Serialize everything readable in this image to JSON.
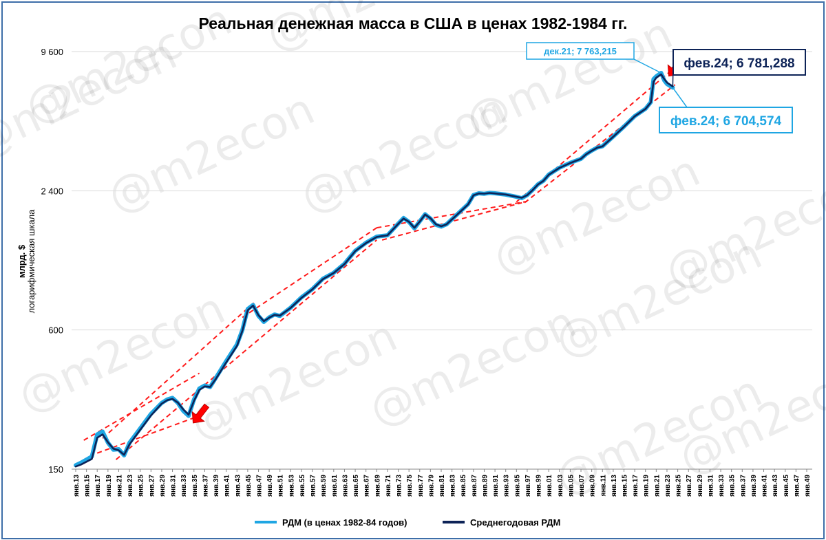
{
  "chart_data": {
    "type": "line",
    "title": "Реальная денежная масса в США в ценах 1982-1984 гг.",
    "ylabel": "млрд. $",
    "ylabel_sub": "логарифмическая шкала",
    "yscale": "log",
    "ylim": [
      150,
      9600
    ],
    "yticks": [
      "9 600",
      "2 400",
      "600",
      "150"
    ],
    "ytick_values": [
      9600,
      2400,
      600,
      150
    ],
    "grid": "horizontal",
    "legend_position": "bottom",
    "x_categories": [
      "янв.13",
      "янв.15",
      "янв.17",
      "янв.19",
      "янв.21",
      "янв.23",
      "янв.25",
      "янв.27",
      "янв.29",
      "янв.31",
      "янв.33",
      "янв.35",
      "янв.37",
      "янв.39",
      "янв.41",
      "янв.43",
      "янв.45",
      "янв.47",
      "янв.49",
      "янв.51",
      "янв.53",
      "янв.55",
      "янв.57",
      "янв.59",
      "янв.61",
      "янв.63",
      "янв.65",
      "янв.67",
      "янв.69",
      "янв.71",
      "янв.73",
      "янв.75",
      "янв.77",
      "янв.79",
      "янв.81",
      "янв.83",
      "янв.85",
      "янв.87",
      "янв.89",
      "янв.91",
      "янв.93",
      "янв.95",
      "янв.97",
      "янв.99",
      "янв.01",
      "янв.03",
      "янв.05",
      "янв.07",
      "янв.09",
      "янв.11",
      "янв.13",
      "янв.15",
      "янв.17",
      "янв.19",
      "янв.21",
      "янв.23",
      "янв.25",
      "янв.27",
      "янв.29",
      "янв.31",
      "янв.33",
      "янв.35",
      "янв.37",
      "янв.39",
      "янв.41",
      "янв.43",
      "янв.45",
      "янв.47",
      "янв.49"
    ],
    "x_years": [
      1913,
      1914,
      1916,
      1917,
      1918,
      1919,
      1920,
      1921,
      1922,
      1923,
      1925,
      1927,
      1929,
      1930,
      1931,
      1932,
      1933,
      1934,
      1935,
      1936,
      1937,
      1938,
      1939,
      1941,
      1943,
      1944,
      1945,
      1946,
      1947,
      1948,
      1949,
      1950,
      1951,
      1953,
      1955,
      1957,
      1959,
      1961,
      1963,
      1965,
      1967,
      1969,
      1970,
      1971,
      1973,
      1974,
      1975,
      1976,
      1977,
      1978,
      1979,
      1980,
      1981,
      1982,
      1984,
      1986,
      1987,
      1988,
      1989,
      1990,
      1991,
      1993,
      1995,
      1996,
      1997,
      1998,
      1999,
      2000,
      2001,
      2003,
      2005,
      2007,
      2008,
      2009,
      2010,
      2011,
      2013,
      2015,
      2017,
      2019,
      2020,
      2020.5,
      2021,
      2021.92,
      2022.5,
      2023,
      2024.08
    ],
    "series": [
      {
        "name": "РДМ (в ценах 1982-84 годов)",
        "color": "#1fa6e3",
        "values": [
          156,
          160,
          170,
          212,
          218,
          195,
          182,
          183,
          172,
          195,
          225,
          260,
          290,
          300,
          305,
          290,
          268,
          255,
          300,
          335,
          345,
          340,
          370,
          440,
          520,
          600,
          740,
          770,
          690,
          650,
          680,
          700,
          690,
          750,
          830,
          900,
          1000,
          1060,
          1160,
          1320,
          1430,
          1520,
          1530,
          1540,
          1730,
          1830,
          1760,
          1650,
          1770,
          1900,
          1820,
          1710,
          1680,
          1720,
          1900,
          2100,
          2300,
          2340,
          2330,
          2350,
          2340,
          2310,
          2260,
          2230,
          2300,
          2420,
          2560,
          2650,
          2820,
          3020,
          3170,
          3300,
          3460,
          3580,
          3690,
          3740,
          4120,
          4550,
          5050,
          5430,
          5800,
          7300,
          7500,
          7763,
          7200,
          6950,
          6705
        ]
      },
      {
        "name": "Среднегодовая РДМ",
        "color": "#0d2357",
        "values": [
          154,
          157,
          166,
          205,
          212,
          196,
          184,
          181,
          173,
          192,
          222,
          256,
          288,
          298,
          302,
          291,
          272,
          258,
          296,
          330,
          342,
          340,
          366,
          434,
          512,
          595,
          730,
          765,
          695,
          655,
          678,
          698,
          692,
          748,
          826,
          898,
          996,
          1058,
          1156,
          1315,
          1425,
          1515,
          1528,
          1540,
          1725,
          1820,
          1762,
          1660,
          1765,
          1895,
          1825,
          1720,
          1685,
          1718,
          1895,
          2095,
          2295,
          2338,
          2332,
          2348,
          2338,
          2312,
          2262,
          2238,
          2298,
          2415,
          2555,
          2648,
          2815,
          3015,
          3165,
          3298,
          3455,
          3575,
          3685,
          3735,
          4110,
          4540,
          5040,
          5420,
          5780,
          7100,
          7400,
          7650,
          7300,
          7050,
          6781
        ]
      }
    ],
    "trend_lines": [
      {
        "start": [
          1914.5,
          200
        ],
        "end": [
          1936,
          390
        ]
      },
      {
        "start": [
          1917,
          176
        ],
        "end": [
          1936,
          255
        ]
      },
      {
        "start": [
          1918,
          204
        ],
        "end": [
          1946.5,
          800
        ]
      },
      {
        "start": [
          1920.5,
          165
        ],
        "end": [
          1969,
          1470
        ]
      },
      {
        "start": [
          1944,
          680
        ],
        "end": [
          1969,
          1660
        ]
      },
      {
        "start": [
          1969,
          1660
        ],
        "end": [
          1997,
          2160
        ]
      },
      {
        "start": [
          1970,
          1470
        ],
        "end": [
          1996,
          2130
        ]
      },
      {
        "start": [
          1995,
          2150
        ],
        "end": [
          2025,
          8400
        ]
      },
      {
        "start": [
          1996.5,
          2130
        ],
        "end": [
          2024.5,
          6900
        ]
      }
    ],
    "annotations": [
      {
        "label": "дек.21;  7 763,215",
        "x": 2021.92,
        "y": 7763
      },
      {
        "label": "фев.24;  6 781,288",
        "x": 2024.08,
        "y": 6781
      },
      {
        "label": "фев.24;  6 704,574",
        "x": 2024.08,
        "y": 6705
      }
    ],
    "arrows": [
      {
        "x": 1935,
        "y": 240
      },
      {
        "x": 2023.5,
        "y": 7600
      }
    ]
  },
  "watermark": "@m2econ"
}
